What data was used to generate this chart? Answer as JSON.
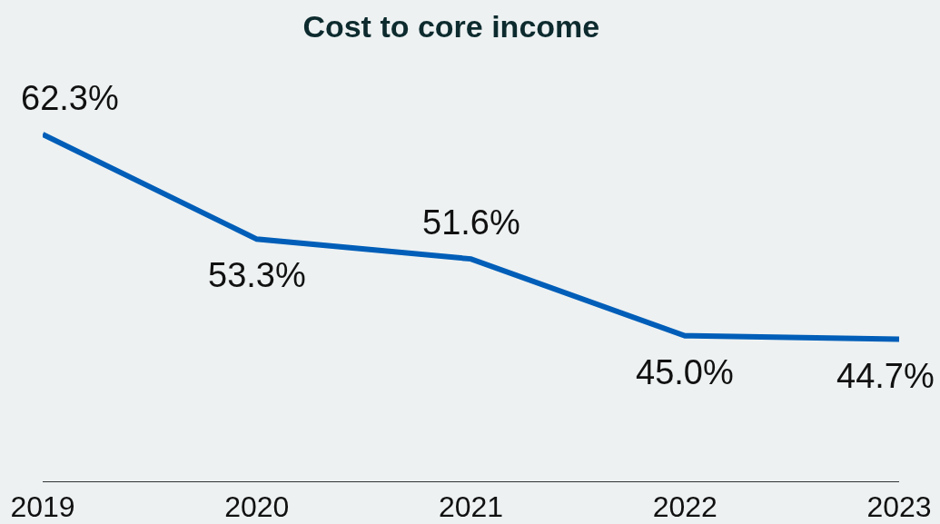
{
  "chart_data": {
    "type": "line",
    "title": "Cost to core income",
    "categories": [
      "2019",
      "2020",
      "2021",
      "2022",
      "2023"
    ],
    "series": [
      {
        "color": "#005eb8",
        "values": [
          62.3,
          53.3,
          51.6,
          45.0,
          44.7
        ],
        "value_labels": [
          "62.3%",
          "53.3%",
          "51.6%",
          "45.0%",
          "44.7%"
        ]
      }
    ],
    "grid": false,
    "legend": false,
    "marker": "none",
    "line_style": "solid",
    "tick_labels": "x"
  }
}
